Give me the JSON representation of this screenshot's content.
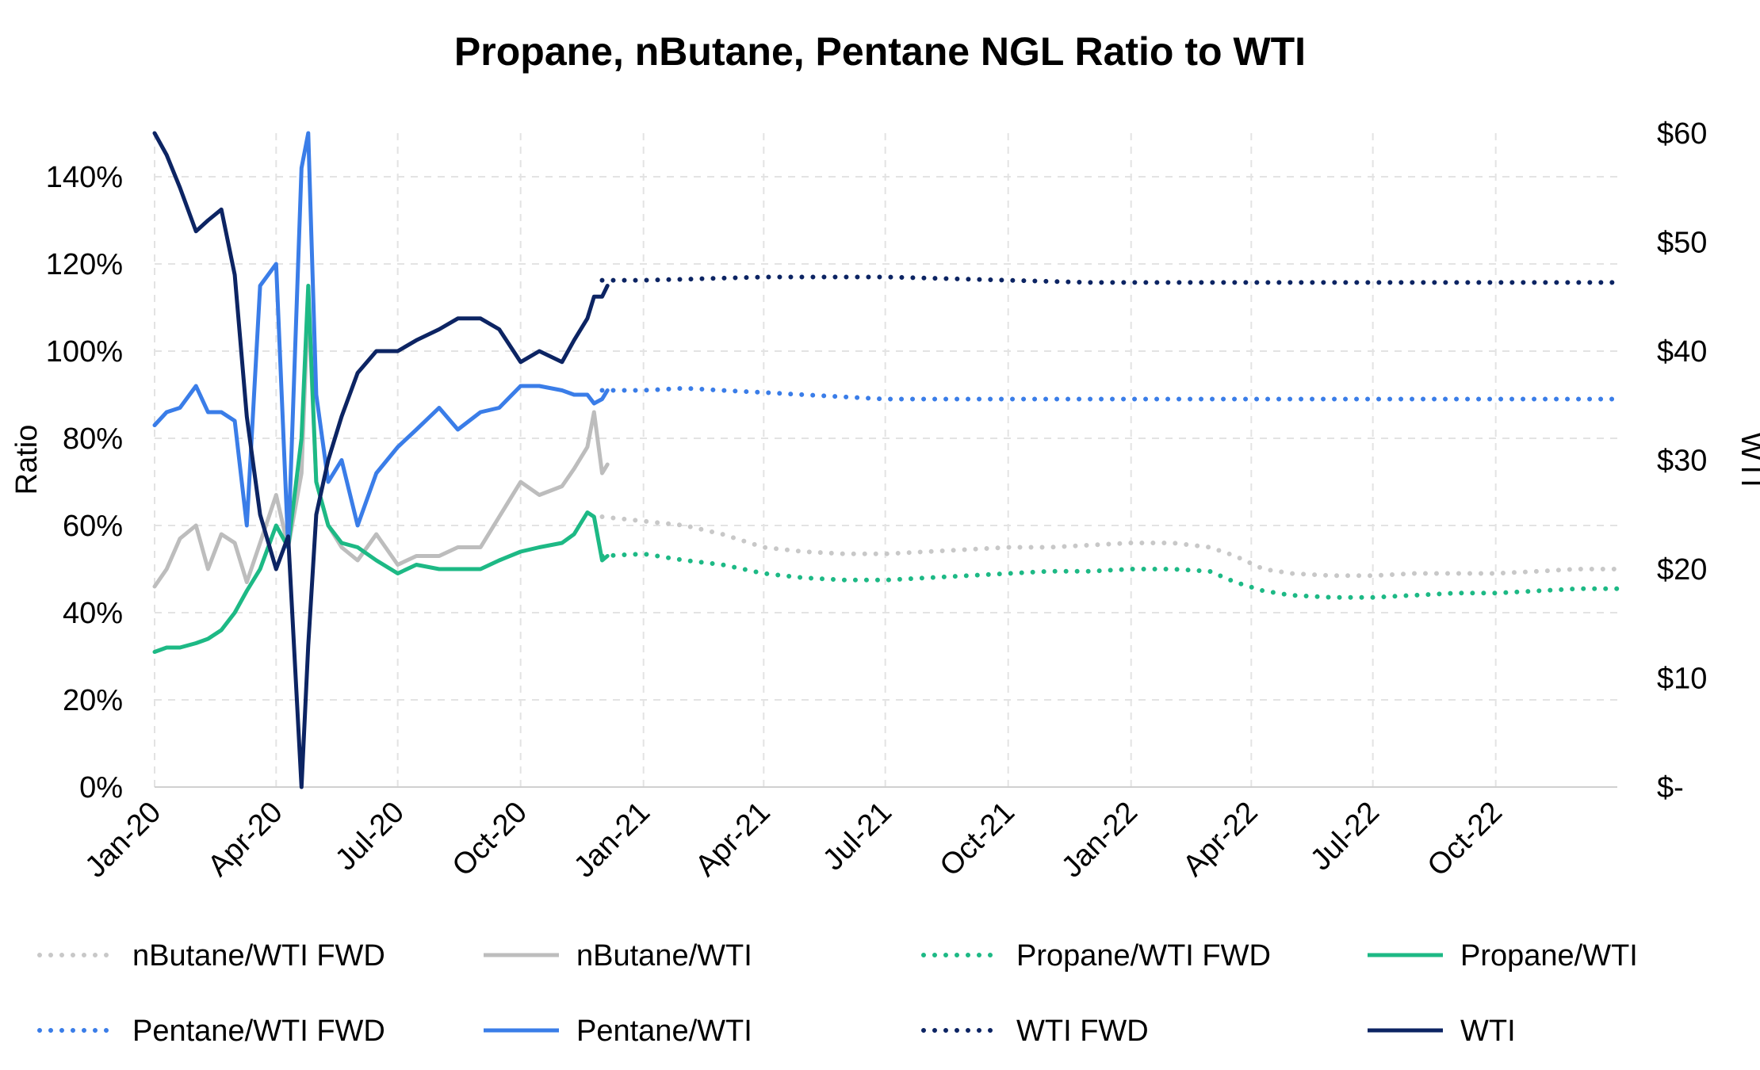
{
  "chart_data": {
    "type": "line",
    "title": "Propane, nButane, Pentane NGL Ratio to WTI",
    "ylabel": "Ratio",
    "y2label": "WTI",
    "ylim": [
      0,
      1.5
    ],
    "y2lim": [
      0,
      60
    ],
    "xlim": [
      "2020-01-01",
      "2022-12-31"
    ],
    "grid": true,
    "legend_position": "bottom",
    "x_ticks": [
      "Jan-20",
      "Apr-20",
      "Jul-20",
      "Oct-20",
      "Jan-21",
      "Apr-21",
      "Jul-21",
      "Oct-21",
      "Jan-22",
      "Apr-22",
      "Jul-22",
      "Oct-22"
    ],
    "y_ticks": [
      "0%",
      "20%",
      "40%",
      "60%",
      "80%",
      "100%",
      "120%",
      "140%"
    ],
    "y2_ticks": [
      "$-",
      "$10",
      "$20",
      "$30",
      "$40",
      "$50",
      "$60"
    ],
    "series": [
      {
        "name": "nButane/WTI FWD",
        "axis": "left",
        "color": "#c8c8c8",
        "style": "dotted",
        "x": [
          "2020-12-01",
          "2021-01-01",
          "2021-02-01",
          "2021-03-01",
          "2021-04-01",
          "2021-05-01",
          "2021-06-01",
          "2021-07-01",
          "2021-08-01",
          "2021-09-01",
          "2021-10-01",
          "2021-11-01",
          "2021-12-01",
          "2022-01-01",
          "2022-02-01",
          "2022-03-01",
          "2022-03-20",
          "2022-04-10",
          "2022-05-01",
          "2022-06-01",
          "2022-07-01",
          "2022-08-01",
          "2022-09-01",
          "2022-10-01",
          "2022-11-01",
          "2022-12-01",
          "2022-12-31"
        ],
        "y": [
          0.62,
          0.61,
          0.6,
          0.58,
          0.55,
          0.54,
          0.535,
          0.535,
          0.54,
          0.545,
          0.55,
          0.55,
          0.555,
          0.56,
          0.56,
          0.55,
          0.53,
          0.5,
          0.49,
          0.485,
          0.485,
          0.49,
          0.49,
          0.49,
          0.495,
          0.5,
          0.5
        ]
      },
      {
        "name": "nButane/WTI",
        "axis": "left",
        "color": "#bdbdbd",
        "style": "solid",
        "x": [
          "2020-01-01",
          "2020-01-10",
          "2020-01-20",
          "2020-02-01",
          "2020-02-10",
          "2020-02-20",
          "2020-03-01",
          "2020-03-10",
          "2020-03-20",
          "2020-04-01",
          "2020-04-10",
          "2020-04-20",
          "2020-04-25",
          "2020-05-01",
          "2020-05-10",
          "2020-05-20",
          "2020-06-01",
          "2020-06-15",
          "2020-07-01",
          "2020-07-15",
          "2020-08-01",
          "2020-08-15",
          "2020-09-01",
          "2020-09-15",
          "2020-10-01",
          "2020-10-15",
          "2020-11-01",
          "2020-11-10",
          "2020-11-20",
          "2020-11-25",
          "2020-12-01",
          "2020-12-05"
        ],
        "y": [
          0.46,
          0.5,
          0.57,
          0.6,
          0.5,
          0.58,
          0.56,
          0.47,
          0.56,
          0.67,
          0.55,
          0.72,
          1.12,
          0.7,
          0.6,
          0.55,
          0.52,
          0.58,
          0.51,
          0.53,
          0.53,
          0.55,
          0.55,
          0.62,
          0.7,
          0.67,
          0.69,
          0.73,
          0.78,
          0.86,
          0.72,
          0.74
        ]
      },
      {
        "name": "Propane/WTI FWD",
        "axis": "left",
        "color": "#1db985",
        "style": "dotted",
        "x": [
          "2020-12-01",
          "2021-01-01",
          "2021-02-01",
          "2021-03-01",
          "2021-04-01",
          "2021-05-01",
          "2021-06-01",
          "2021-07-01",
          "2021-08-01",
          "2021-09-01",
          "2021-10-01",
          "2021-11-01",
          "2021-12-01",
          "2022-01-01",
          "2022-02-01",
          "2022-03-01",
          "2022-03-20",
          "2022-04-10",
          "2022-05-01",
          "2022-06-01",
          "2022-07-01",
          "2022-08-01",
          "2022-09-01",
          "2022-10-01",
          "2022-11-01",
          "2022-12-01",
          "2022-12-31"
        ],
        "y": [
          0.53,
          0.535,
          0.52,
          0.51,
          0.49,
          0.48,
          0.475,
          0.475,
          0.48,
          0.485,
          0.49,
          0.495,
          0.495,
          0.5,
          0.5,
          0.495,
          0.47,
          0.45,
          0.44,
          0.435,
          0.435,
          0.44,
          0.445,
          0.445,
          0.45,
          0.455,
          0.455
        ]
      },
      {
        "name": "Propane/WTI",
        "axis": "left",
        "color": "#1db985",
        "style": "solid",
        "x": [
          "2020-01-01",
          "2020-01-10",
          "2020-01-20",
          "2020-02-01",
          "2020-02-10",
          "2020-02-20",
          "2020-03-01",
          "2020-03-10",
          "2020-03-20",
          "2020-04-01",
          "2020-04-10",
          "2020-04-20",
          "2020-04-25",
          "2020-05-01",
          "2020-05-10",
          "2020-05-20",
          "2020-06-01",
          "2020-06-15",
          "2020-07-01",
          "2020-07-15",
          "2020-08-01",
          "2020-08-15",
          "2020-09-01",
          "2020-09-15",
          "2020-10-01",
          "2020-10-15",
          "2020-11-01",
          "2020-11-10",
          "2020-11-20",
          "2020-11-25",
          "2020-12-01",
          "2020-12-05"
        ],
        "y": [
          0.31,
          0.32,
          0.32,
          0.33,
          0.34,
          0.36,
          0.4,
          0.45,
          0.5,
          0.6,
          0.55,
          0.8,
          1.15,
          0.7,
          0.6,
          0.56,
          0.55,
          0.52,
          0.49,
          0.51,
          0.5,
          0.5,
          0.5,
          0.52,
          0.54,
          0.55,
          0.56,
          0.58,
          0.63,
          0.62,
          0.52,
          0.53
        ]
      },
      {
        "name": "Pentane/WTI FWD",
        "axis": "left",
        "color": "#3a7de8",
        "style": "dotted",
        "x": [
          "2020-12-01",
          "2021-01-01",
          "2021-02-01",
          "2021-03-01",
          "2021-04-01",
          "2021-05-01",
          "2021-06-01",
          "2021-07-01",
          "2021-08-01",
          "2021-09-01",
          "2021-10-01",
          "2021-11-01",
          "2021-12-01",
          "2022-01-01",
          "2022-02-01",
          "2022-03-01",
          "2022-04-01",
          "2022-05-01",
          "2022-06-01",
          "2022-07-01",
          "2022-08-01",
          "2022-09-01",
          "2022-10-01",
          "2022-11-01",
          "2022-12-01",
          "2022-12-31"
        ],
        "y": [
          0.91,
          0.91,
          0.915,
          0.91,
          0.905,
          0.9,
          0.895,
          0.89,
          0.89,
          0.89,
          0.89,
          0.89,
          0.89,
          0.89,
          0.89,
          0.89,
          0.89,
          0.89,
          0.89,
          0.89,
          0.89,
          0.89,
          0.89,
          0.89,
          0.89,
          0.89
        ]
      },
      {
        "name": "Pentane/WTI",
        "axis": "left",
        "color": "#3a7de8",
        "style": "solid",
        "x": [
          "2020-01-01",
          "2020-01-10",
          "2020-01-20",
          "2020-02-01",
          "2020-02-10",
          "2020-02-20",
          "2020-03-01",
          "2020-03-10",
          "2020-03-20",
          "2020-04-01",
          "2020-04-10",
          "2020-04-20",
          "2020-04-25",
          "2020-05-01",
          "2020-05-10",
          "2020-05-20",
          "2020-06-01",
          "2020-06-15",
          "2020-07-01",
          "2020-07-15",
          "2020-08-01",
          "2020-08-15",
          "2020-09-01",
          "2020-09-15",
          "2020-10-01",
          "2020-10-15",
          "2020-11-01",
          "2020-11-10",
          "2020-11-20",
          "2020-11-25",
          "2020-12-01",
          "2020-12-05"
        ],
        "y": [
          0.83,
          0.86,
          0.87,
          0.92,
          0.86,
          0.86,
          0.84,
          0.6,
          1.15,
          1.2,
          0.55,
          1.42,
          1.5,
          0.9,
          0.7,
          0.75,
          0.6,
          0.72,
          0.78,
          0.82,
          0.87,
          0.82,
          0.86,
          0.87,
          0.92,
          0.92,
          0.91,
          0.9,
          0.9,
          0.88,
          0.89,
          0.91
        ]
      },
      {
        "name": "WTI FWD",
        "axis": "right",
        "color": "#0c2463",
        "style": "dotted",
        "x": [
          "2020-12-01",
          "2021-01-01",
          "2021-02-01",
          "2021-03-01",
          "2021-04-01",
          "2021-05-01",
          "2021-06-01",
          "2021-07-01",
          "2021-08-01",
          "2021-09-01",
          "2021-10-01",
          "2021-11-01",
          "2021-12-01",
          "2022-01-01",
          "2022-02-01",
          "2022-03-01",
          "2022-04-01",
          "2022-05-01",
          "2022-06-01",
          "2022-07-01",
          "2022-08-01",
          "2022-09-01",
          "2022-10-01",
          "2022-11-01",
          "2022-12-01",
          "2022-12-31"
        ],
        "y": [
          46.5,
          46.5,
          46.6,
          46.7,
          46.8,
          46.8,
          46.8,
          46.8,
          46.7,
          46.6,
          46.5,
          46.4,
          46.3,
          46.3,
          46.3,
          46.3,
          46.3,
          46.3,
          46.3,
          46.3,
          46.3,
          46.3,
          46.3,
          46.3,
          46.3,
          46.3
        ]
      },
      {
        "name": "WTI",
        "axis": "right",
        "color": "#0c2463",
        "style": "solid",
        "x": [
          "2020-01-01",
          "2020-01-10",
          "2020-01-20",
          "2020-02-01",
          "2020-02-10",
          "2020-02-20",
          "2020-03-01",
          "2020-03-10",
          "2020-03-20",
          "2020-04-01",
          "2020-04-10",
          "2020-04-20",
          "2020-04-25",
          "2020-05-01",
          "2020-05-10",
          "2020-05-20",
          "2020-06-01",
          "2020-06-15",
          "2020-07-01",
          "2020-07-15",
          "2020-08-01",
          "2020-08-15",
          "2020-09-01",
          "2020-09-15",
          "2020-10-01",
          "2020-10-15",
          "2020-11-01",
          "2020-11-10",
          "2020-11-20",
          "2020-11-25",
          "2020-12-01",
          "2020-12-05"
        ],
        "y": [
          60,
          58,
          55,
          51,
          52,
          53,
          47,
          34,
          25,
          20,
          23,
          0,
          13,
          25,
          30,
          34,
          38,
          40,
          40,
          41,
          42,
          43,
          43,
          42,
          39,
          40,
          39,
          41,
          43,
          45,
          45,
          46
        ]
      }
    ]
  }
}
